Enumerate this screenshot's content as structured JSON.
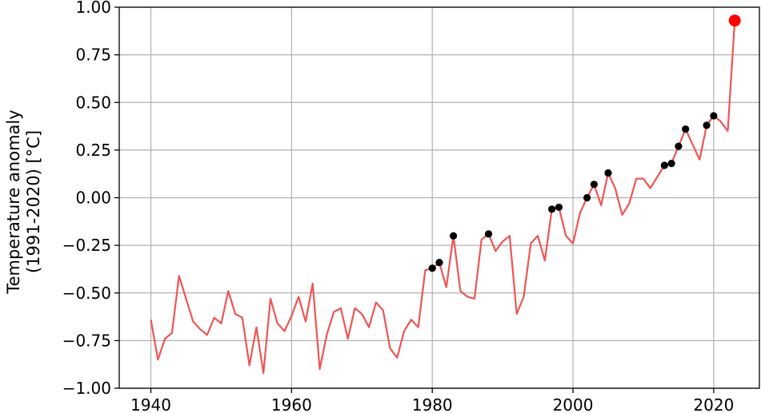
{
  "chart_data": {
    "type": "line",
    "title": "",
    "xlabel": "",
    "ylabel_lines": [
      "Temperature anomaly",
      "(1991-2020) [°C]"
    ],
    "xlim": [
      1935.5,
      2026.5
    ],
    "ylim": [
      -1.0,
      1.0
    ],
    "xticks": [
      1940,
      1960,
      1980,
      2000,
      2020
    ],
    "yticks": [
      -1.0,
      -0.75,
      -0.5,
      -0.25,
      0.0,
      0.25,
      0.5,
      0.75,
      1.0
    ],
    "ytick_labels": [
      "−1.00",
      "−0.75",
      "−0.50",
      "−0.25",
      "0.00",
      "0.25",
      "0.50",
      "0.75",
      "1.00"
    ],
    "grid": true,
    "colors": {
      "line": "#f05454",
      "record_marker": "#000000",
      "latest_marker": "#ff0000"
    },
    "series": [
      {
        "x": [
          1940,
          1941,
          1942,
          1943,
          1944,
          1945,
          1946,
          1947,
          1948,
          1949,
          1950,
          1951,
          1952,
          1953,
          1954,
          1955,
          1956,
          1957,
          1958,
          1959,
          1960,
          1961,
          1962,
          1963,
          1964,
          1965,
          1966,
          1967,
          1968,
          1969,
          1970,
          1971,
          1972,
          1973,
          1974,
          1975,
          1976,
          1977,
          1978,
          1979,
          1980,
          1981,
          1982,
          1983,
          1984,
          1985,
          1986,
          1987,
          1988,
          1989,
          1990,
          1991,
          1992,
          1993,
          1994,
          1995,
          1996,
          1997,
          1998,
          1999,
          2000,
          2001,
          2002,
          2003,
          2004,
          2005,
          2006,
          2007,
          2008,
          2009,
          2010,
          2011,
          2012,
          2013,
          2014,
          2015,
          2016,
          2017,
          2018,
          2019,
          2020,
          2021,
          2022,
          2023
        ],
        "values": [
          -0.64,
          -0.85,
          -0.74,
          -0.71,
          -0.41,
          -0.53,
          -0.65,
          -0.69,
          -0.72,
          -0.63,
          -0.66,
          -0.49,
          -0.61,
          -0.63,
          -0.88,
          -0.68,
          -0.92,
          -0.53,
          -0.66,
          -0.7,
          -0.62,
          -0.52,
          -0.65,
          -0.45,
          -0.9,
          -0.72,
          -0.6,
          -0.58,
          -0.74,
          -0.58,
          -0.61,
          -0.68,
          -0.55,
          -0.59,
          -0.79,
          -0.84,
          -0.7,
          -0.64,
          -0.68,
          -0.38,
          -0.37,
          -0.34,
          -0.47,
          -0.2,
          -0.49,
          -0.52,
          -0.53,
          -0.22,
          -0.19,
          -0.28,
          -0.23,
          -0.2,
          -0.61,
          -0.52,
          -0.24,
          -0.2,
          -0.33,
          -0.06,
          -0.05,
          -0.2,
          -0.24,
          -0.08,
          0.0,
          0.07,
          -0.04,
          0.13,
          0.05,
          -0.09,
          -0.03,
          0.1,
          0.1,
          0.05,
          0.11,
          0.17,
          0.18,
          0.27,
          0.36,
          0.28,
          0.2,
          0.38,
          0.43,
          0.4,
          0.35,
          0.93
        ]
      }
    ],
    "record_points": {
      "x": [
        1980,
        1981,
        1983,
        1988,
        1997,
        1998,
        2002,
        2003,
        2005,
        2013,
        2014,
        2015,
        2016,
        2019,
        2020
      ],
      "values": [
        -0.37,
        -0.34,
        -0.2,
        -0.19,
        -0.06,
        -0.05,
        0.0,
        0.07,
        0.13,
        0.17,
        0.18,
        0.27,
        0.36,
        0.38,
        0.43
      ]
    },
    "latest_point": {
      "x": 2023,
      "value": 0.93
    }
  }
}
